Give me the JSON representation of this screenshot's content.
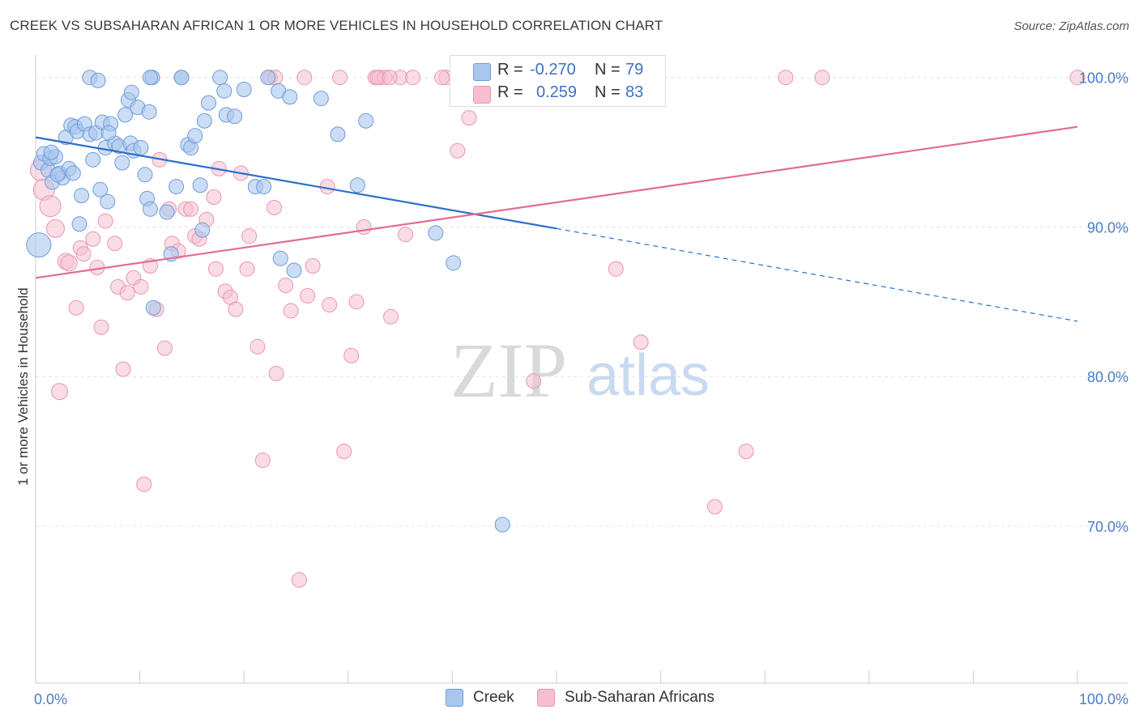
{
  "title": "CREEK VS SUBSAHARAN AFRICAN 1 OR MORE VEHICLES IN HOUSEHOLD CORRELATION CHART",
  "source": "Source: ZipAtlas.com",
  "watermark": {
    "zip": "ZIP",
    "atlas": "atlas"
  },
  "colors": {
    "creek_fill": "#a9c6ef",
    "creek_stroke": "#6f9bd8",
    "creek_line": "#2b6fcd",
    "ssa_fill": "#f6bfd0",
    "ssa_stroke": "#e896b1",
    "ssa_line": "#e36a95",
    "tick_label": "#4a7cc7",
    "grid": "#e4e4e4"
  },
  "legend": {
    "rows": [
      {
        "r_label": "R =",
        "r_value": "-0.270",
        "n_label": "N =",
        "n_value": "79"
      },
      {
        "r_label": "R =",
        "r_value": "0.259",
        "n_label": "N =",
        "n_value": "83"
      }
    ]
  },
  "bottom_legend": {
    "creek": "Creek",
    "ssa": "Sub-Saharan Africans"
  },
  "chart_data": {
    "type": "scatter",
    "title": "CREEK VS SUBSAHARAN AFRICAN 1 OR MORE VEHICLES IN HOUSEHOLD CORRELATION CHART",
    "xlabel": "",
    "ylabel": "1 or more Vehicles in Household",
    "xlim": [
      0,
      100
    ],
    "ylim": [
      59.5,
      101.5
    ],
    "x_tick_labels": [
      "0.0%",
      "100.0%"
    ],
    "y_ticks": [
      {
        "value": 100,
        "label": "100.0%"
      },
      {
        "value": 90,
        "label": "90.0%"
      },
      {
        "value": 80,
        "label": "80.0%"
      },
      {
        "value": 70,
        "label": "70.0%"
      }
    ],
    "grid": true,
    "legend_position": "top-center",
    "series": [
      {
        "name": "Creek",
        "r": -0.27,
        "n": 79,
        "trend": {
          "x0": 0,
          "y0": 96.0,
          "x1": 50,
          "y1": 89.9,
          "dash_to_x": 100,
          "dash_to_y": 83.7
        },
        "points": [
          [
            0.3,
            88.8,
            14
          ],
          [
            0.5,
            94.3,
            8
          ],
          [
            0.8,
            94.9,
            8
          ],
          [
            1.2,
            93.8,
            8
          ],
          [
            1.4,
            94.6,
            8
          ],
          [
            1.6,
            93.0,
            8
          ],
          [
            1.9,
            94.7,
            8
          ],
          [
            2.3,
            93.6,
            8
          ],
          [
            2.6,
            93.3,
            8
          ],
          [
            2.9,
            96.0,
            8
          ],
          [
            3.2,
            93.9,
            8
          ],
          [
            3.4,
            96.8,
            8
          ],
          [
            3.6,
            93.6,
            8
          ],
          [
            3.8,
            96.7,
            8
          ],
          [
            4.0,
            96.4,
            8
          ],
          [
            4.2,
            90.2,
            8
          ],
          [
            4.4,
            92.1,
            8
          ],
          [
            4.7,
            96.9,
            8
          ],
          [
            5.2,
            96.2,
            8
          ],
          [
            5.5,
            94.5,
            8
          ],
          [
            5.8,
            96.3,
            8
          ],
          [
            6.2,
            92.5,
            8
          ],
          [
            6.4,
            97.0,
            8
          ],
          [
            6.7,
            95.3,
            8
          ],
          [
            6.9,
            91.7,
            8
          ],
          [
            7.2,
            96.9,
            8
          ],
          [
            7.6,
            95.6,
            8
          ],
          [
            8.0,
            95.4,
            8
          ],
          [
            8.3,
            94.3,
            8
          ],
          [
            8.6,
            97.5,
            8
          ],
          [
            8.9,
            98.5,
            8
          ],
          [
            9.1,
            95.6,
            8
          ],
          [
            9.4,
            95.1,
            8
          ],
          [
            9.8,
            98.0,
            8
          ],
          [
            10.1,
            95.3,
            8
          ],
          [
            10.5,
            93.5,
            8
          ],
          [
            10.7,
            91.9,
            8
          ],
          [
            10.9,
            97.7,
            8
          ],
          [
            11.0,
            91.2,
            8
          ],
          [
            11.3,
            84.6,
            8
          ],
          [
            12.6,
            91.0,
            8
          ],
          [
            13.0,
            88.2,
            8
          ],
          [
            13.5,
            92.7,
            8
          ],
          [
            14.0,
            100.0,
            8
          ],
          [
            14.6,
            95.5,
            8
          ],
          [
            14.9,
            95.3,
            8
          ],
          [
            15.3,
            96.1,
            8
          ],
          [
            15.8,
            92.8,
            8
          ],
          [
            16.0,
            89.8,
            8
          ],
          [
            16.2,
            97.1,
            8
          ],
          [
            16.6,
            98.3,
            8
          ],
          [
            17.7,
            100.0,
            8
          ],
          [
            18.1,
            99.1,
            8
          ],
          [
            18.3,
            97.5,
            8
          ],
          [
            19.1,
            97.4,
            8
          ],
          [
            20.0,
            99.2,
            8
          ],
          [
            21.1,
            92.7,
            8
          ],
          [
            21.9,
            92.7,
            8
          ],
          [
            22.3,
            100.0,
            8
          ],
          [
            23.3,
            99.1,
            8
          ],
          [
            23.5,
            87.9,
            8
          ],
          [
            24.4,
            98.7,
            8
          ],
          [
            24.8,
            87.1,
            8
          ],
          [
            27.4,
            98.6,
            8
          ],
          [
            29.0,
            96.2,
            8
          ],
          [
            30.9,
            92.8,
            8
          ],
          [
            31.7,
            97.1,
            8
          ],
          [
            38.4,
            89.6,
            8
          ],
          [
            40.1,
            87.6,
            8
          ],
          [
            44.8,
            70.1,
            8
          ],
          [
            5.2,
            100.0,
            8
          ],
          [
            6.0,
            99.8,
            8
          ],
          [
            11.2,
            100.0,
            8
          ],
          [
            14.0,
            100.0,
            8
          ],
          [
            11.0,
            100.0,
            8
          ],
          [
            2.1,
            93.5,
            8
          ],
          [
            1.5,
            95.0,
            8
          ],
          [
            7.0,
            96.3,
            8
          ],
          [
            9.2,
            99.0,
            8
          ]
        ]
      },
      {
        "name": "Sub-Saharan Africans",
        "r": 0.259,
        "n": 83,
        "trend": {
          "x0": 0,
          "y0": 86.6,
          "x1": 100,
          "y1": 96.7
        },
        "points": [
          [
            0.5,
            93.8,
            12
          ],
          [
            0.8,
            92.5,
            12
          ],
          [
            1.4,
            91.4,
            12
          ],
          [
            1.9,
            89.9,
            10
          ],
          [
            2.3,
            79.0,
            9
          ],
          [
            2.9,
            87.7,
            9
          ],
          [
            3.2,
            87.6,
            9
          ],
          [
            3.9,
            84.6,
            8
          ],
          [
            4.3,
            88.6,
            8
          ],
          [
            4.6,
            88.2,
            8
          ],
          [
            5.5,
            89.2,
            8
          ],
          [
            5.9,
            87.3,
            8
          ],
          [
            6.3,
            83.3,
            8
          ],
          [
            6.7,
            90.4,
            8
          ],
          [
            7.6,
            88.9,
            8
          ],
          [
            7.9,
            86.0,
            8
          ],
          [
            8.4,
            80.5,
            8
          ],
          [
            8.8,
            85.6,
            8
          ],
          [
            9.4,
            86.6,
            8
          ],
          [
            10.1,
            86.0,
            8
          ],
          [
            10.4,
            72.8,
            8
          ],
          [
            11.0,
            87.4,
            8
          ],
          [
            11.6,
            84.5,
            8
          ],
          [
            11.9,
            94.5,
            8
          ],
          [
            12.4,
            81.9,
            8
          ],
          [
            12.8,
            91.2,
            8
          ],
          [
            13.1,
            88.9,
            8
          ],
          [
            13.7,
            88.4,
            8
          ],
          [
            14.4,
            91.2,
            8
          ],
          [
            14.9,
            91.2,
            8
          ],
          [
            15.3,
            89.4,
            8
          ],
          [
            15.7,
            89.2,
            8
          ],
          [
            16.4,
            90.5,
            8
          ],
          [
            17.1,
            92.0,
            8
          ],
          [
            17.3,
            87.2,
            8
          ],
          [
            17.6,
            93.9,
            8
          ],
          [
            18.2,
            85.7,
            8
          ],
          [
            18.7,
            85.3,
            8
          ],
          [
            19.2,
            84.5,
            8
          ],
          [
            19.7,
            93.6,
            8
          ],
          [
            20.3,
            87.2,
            8
          ],
          [
            20.5,
            89.4,
            8
          ],
          [
            21.3,
            82.0,
            8
          ],
          [
            21.8,
            74.4,
            8
          ],
          [
            22.5,
            100.0,
            8
          ],
          [
            22.9,
            91.3,
            8
          ],
          [
            23.1,
            80.2,
            8
          ],
          [
            24.0,
            86.1,
            8
          ],
          [
            24.5,
            84.4,
            8
          ],
          [
            25.3,
            66.4,
            8
          ],
          [
            25.8,
            100.0,
            8
          ],
          [
            26.1,
            85.4,
            8
          ],
          [
            26.6,
            87.4,
            8
          ],
          [
            28.0,
            92.7,
            8
          ],
          [
            28.2,
            84.8,
            8
          ],
          [
            29.2,
            100.0,
            8
          ],
          [
            29.6,
            75.0,
            8
          ],
          [
            30.3,
            81.4,
            8
          ],
          [
            30.8,
            85.0,
            8
          ],
          [
            31.5,
            90.0,
            8
          ],
          [
            32.6,
            100.0,
            8
          ],
          [
            33.0,
            100.0,
            8
          ],
          [
            33.5,
            100.0,
            8
          ],
          [
            34.1,
            84.0,
            8
          ],
          [
            35.0,
            100.0,
            8
          ],
          [
            35.5,
            89.5,
            8
          ],
          [
            36.2,
            100.0,
            8
          ],
          [
            39.4,
            100.0,
            8
          ],
          [
            40.5,
            95.1,
            8
          ],
          [
            41.6,
            97.3,
            8
          ],
          [
            47.8,
            79.7,
            8
          ],
          [
            55.7,
            87.2,
            8
          ],
          [
            58.1,
            82.3,
            8
          ],
          [
            59.3,
            100.0,
            8
          ],
          [
            65.2,
            71.3,
            8
          ],
          [
            68.2,
            75.0,
            8
          ],
          [
            72.0,
            100.0,
            8
          ],
          [
            75.5,
            100.0,
            8
          ],
          [
            100.0,
            100.0,
            8
          ],
          [
            32.8,
            100.0,
            8
          ],
          [
            23.0,
            100.0,
            8
          ],
          [
            34.0,
            100.0,
            8
          ],
          [
            39.0,
            100.0,
            8
          ]
        ]
      }
    ]
  },
  "ylabel_text": "1 or more Vehicles in Household"
}
